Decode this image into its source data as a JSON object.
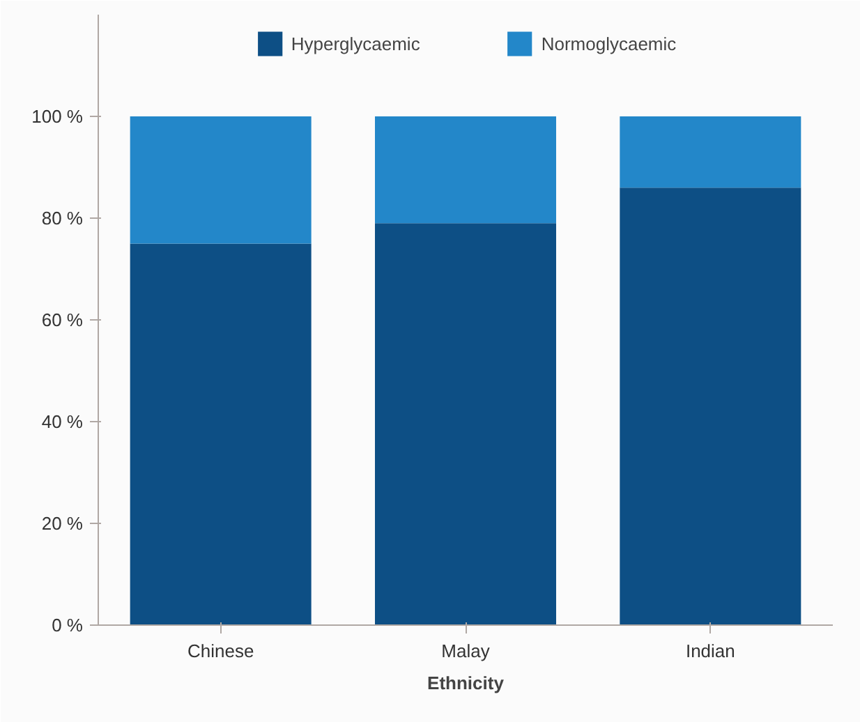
{
  "chart_data": {
    "type": "bar",
    "stacked": true,
    "xlabel": "Ethnicity",
    "categories": [
      "Chinese",
      "Malay",
      "Indian"
    ],
    "series": [
      {
        "name": "Hyperglycaemic",
        "color": "#0d4f85",
        "values": [
          75,
          79,
          86
        ]
      },
      {
        "name": "Normoglycaemic",
        "color": "#2387c9",
        "values": [
          25,
          21,
          14
        ]
      }
    ],
    "ylim": [
      0,
      120
    ],
    "yticks": [
      {
        "value": 0,
        "label": "0 %"
      },
      {
        "value": 20,
        "label": "20 %"
      },
      {
        "value": 40,
        "label": "40 %"
      },
      {
        "value": 60,
        "label": "60 %"
      },
      {
        "value": 80,
        "label": "80 %"
      },
      {
        "value": 100,
        "label": "100 %"
      }
    ],
    "grid": false,
    "legend": "top"
  }
}
